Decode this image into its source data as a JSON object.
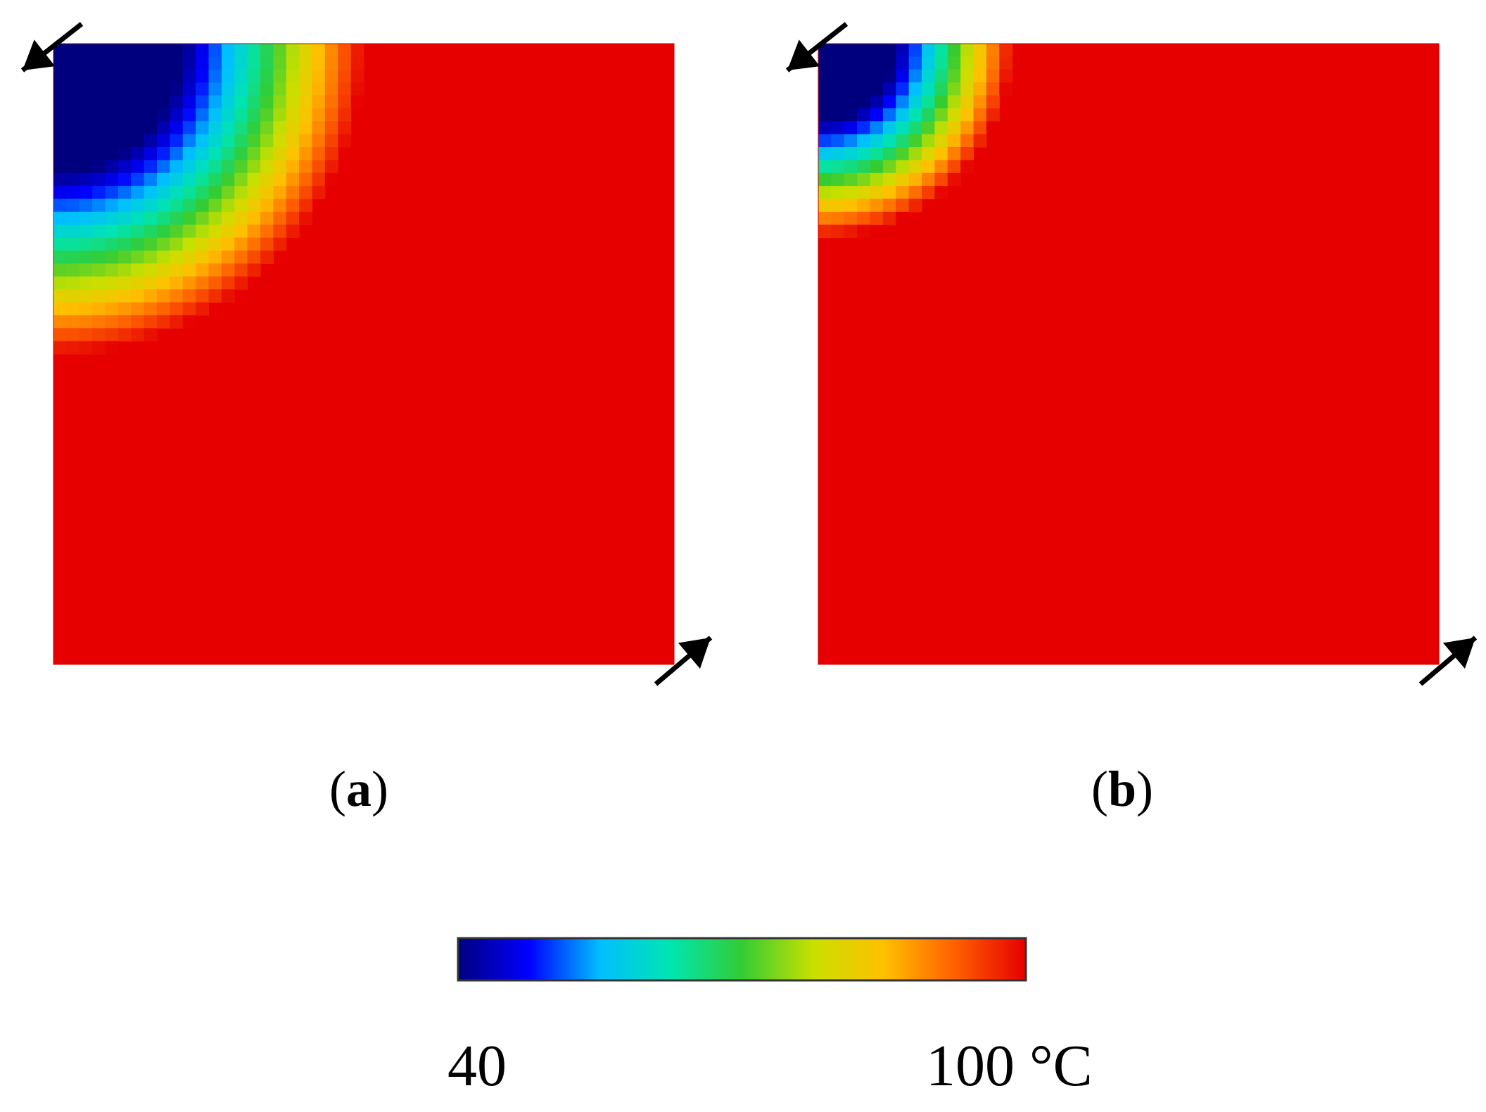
{
  "chart_data": [
    {
      "type": "heatmap",
      "panel_label": "a",
      "description_value_units": "°C",
      "grid": false,
      "cold_corner": "top-left",
      "colormap": "jet",
      "vmin": 40,
      "vmax": 100,
      "field": {
        "cells_per_side": 48,
        "cold_core_radius_cells": 10,
        "front_radius_cells": 24,
        "ambient_value": 100,
        "core_value": 40
      },
      "arrows": [
        "top-left",
        "bottom-right"
      ]
    },
    {
      "type": "heatmap",
      "panel_label": "b",
      "grid": false,
      "cold_corner": "top-left",
      "colormap": "jet",
      "vmin": 40,
      "vmax": 100,
      "field": {
        "cells_per_side": 48,
        "cold_core_radius_cells": 6,
        "front_radius_cells": 15,
        "ambient_value": 100,
        "core_value": 40
      },
      "arrows": [
        "top-left",
        "bottom-right"
      ]
    }
  ],
  "labels": {
    "panel_a_open": "(",
    "panel_a_letter": "a",
    "panel_a_close": ")",
    "panel_b_open": "(",
    "panel_b_letter": "b",
    "panel_b_close": ")"
  },
  "colorbar": {
    "min_label": "40",
    "max_label": "100 °C",
    "stops": [
      "#00007f",
      "#0000ff",
      "#00bfff",
      "#00e5b0",
      "#33cc33",
      "#c8e000",
      "#ffc000",
      "#ff6000",
      "#e60000"
    ]
  }
}
